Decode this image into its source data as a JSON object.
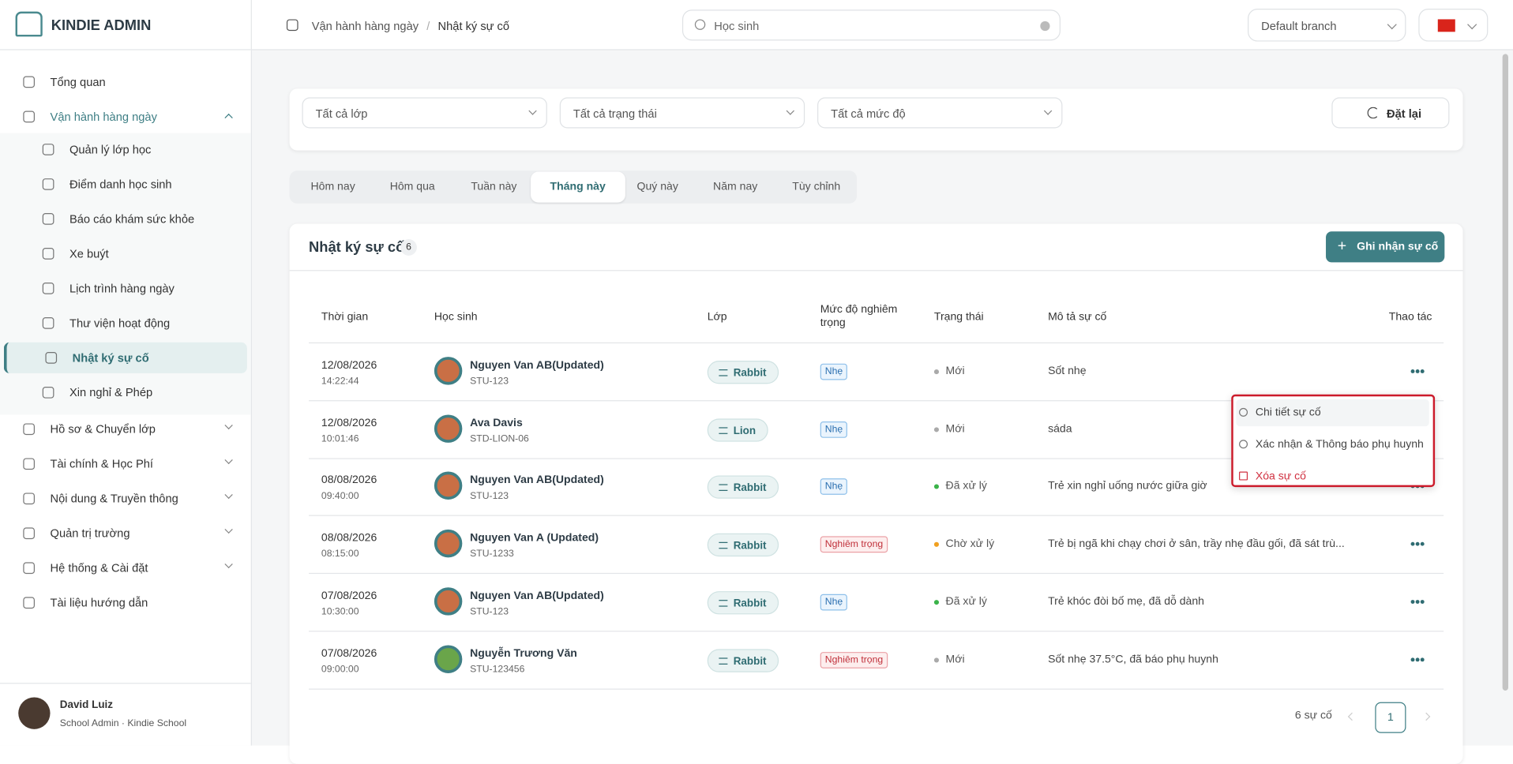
{
  "brand": "KINDIE ADMIN",
  "breadcrumb": {
    "items": [
      "Vận hành hàng ngày",
      "Nhật ký sự cố"
    ],
    "separator": "/"
  },
  "search": {
    "placeholder": "Học sinh"
  },
  "branch": "Default branch",
  "sidebar": {
    "items": [
      {
        "label": "Tổng quan"
      },
      {
        "label": "Vận hành hàng ngày",
        "expanded": true,
        "children": [
          {
            "label": "Quản lý lớp học"
          },
          {
            "label": "Điểm danh học sinh"
          },
          {
            "label": "Báo cáo khám sức khỏe"
          },
          {
            "label": "Xe buýt"
          },
          {
            "label": "Lịch trình hàng ngày"
          },
          {
            "label": "Thư viện hoạt động"
          },
          {
            "label": "Nhật ký sự cố",
            "active": true
          },
          {
            "label": "Xin nghỉ & Phép"
          }
        ]
      },
      {
        "label": "Hồ sơ & Chuyển lớp",
        "collapsible": true
      },
      {
        "label": "Tài chính & Học Phí",
        "collapsible": true
      },
      {
        "label": "Nội dung & Truyền thông",
        "collapsible": true
      },
      {
        "label": "Quản trị trường",
        "collapsible": true
      },
      {
        "label": "Hệ thống & Cài đặt",
        "collapsible": true
      },
      {
        "label": "Tài liệu hướng dẫn"
      }
    ]
  },
  "user": {
    "name": "David Luiz",
    "role": "School Admin · Kindie School"
  },
  "filters": {
    "selects": [
      "Tất cả lớp",
      "Tất cả trạng thái",
      "Tất cả mức độ"
    ],
    "reset": "Đặt lại"
  },
  "tabs": {
    "items": [
      "Hôm nay",
      "Hôm qua",
      "Tuần này",
      "Tháng này",
      "Quý này",
      "Năm nay",
      "Tùy chỉnh"
    ],
    "active": 3
  },
  "card": {
    "title": "Nhật ký sự cố",
    "count": "6",
    "button": "Ghi nhận sự cố"
  },
  "table": {
    "headers": [
      "Thời gian",
      "Học sinh",
      "Lớp",
      "Mức độ nghiêm trọng",
      "Trạng thái",
      "Mô tả sự cố",
      "Thao tác"
    ],
    "rows": [
      [
        "12/08/2026",
        "14:22:44",
        "Nguyen Van AB(Updated)",
        "STU-123",
        "Rabbit",
        "Nhẹ",
        "Mới",
        "Sốt nhẹ"
      ],
      [
        "12/08/2026",
        "10:01:46",
        "Ava Davis",
        "STD-LION-06",
        "Lion",
        "Nhẹ",
        "Mới",
        "sáda"
      ],
      [
        "08/08/2026",
        "09:40:00",
        "Nguyen Van AB(Updated)",
        "STU-123",
        "Rabbit",
        "Nhẹ",
        "Đã xử lý",
        "Trẻ xin nghỉ uống nước giữa giờ"
      ],
      [
        "08/08/2026",
        "08:15:00",
        "Nguyen Van A (Updated)",
        "STU-1233",
        "Rabbit",
        "Nghiêm trọng",
        "Chờ xử lý",
        "Trẻ bị ngã khi chạy chơi ở sân, trầy nhẹ đầu gối, đã sát trù..."
      ],
      [
        "07/08/2026",
        "10:30:00",
        "Nguyen Van AB(Updated)",
        "STU-123",
        "Rabbit",
        "Nhẹ",
        "Đã xử lý",
        "Trẻ khóc đòi bố mẹ, đã dỗ dành"
      ],
      [
        "07/08/2026",
        "09:00:00",
        "Nguyễn Trương Văn",
        "STU-123456",
        "Rabbit",
        "Nghiêm trọng",
        "Mới",
        "Sốt nhẹ 37.5°C, đã báo phụ huynh"
      ]
    ]
  },
  "menu": {
    "items": [
      "Chi tiết sự cố",
      "Xác nhận & Thông báo phụ huynh",
      "Xóa sự cố"
    ]
  },
  "pagination": {
    "summary": "6 sự cố",
    "page": "1"
  }
}
